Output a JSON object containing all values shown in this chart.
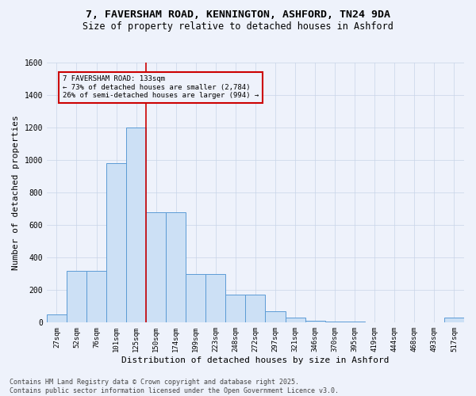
{
  "title_line1": "7, FAVERSHAM ROAD, KENNINGTON, ASHFORD, TN24 9DA",
  "title_line2": "Size of property relative to detached houses in Ashford",
  "xlabel": "Distribution of detached houses by size in Ashford",
  "ylabel": "Number of detached properties",
  "categories": [
    "27sqm",
    "52sqm",
    "76sqm",
    "101sqm",
    "125sqm",
    "150sqm",
    "174sqm",
    "199sqm",
    "223sqm",
    "248sqm",
    "272sqm",
    "297sqm",
    "321sqm",
    "346sqm",
    "370sqm",
    "395sqm",
    "419sqm",
    "444sqm",
    "468sqm",
    "493sqm",
    "517sqm"
  ],
  "values": [
    50,
    320,
    320,
    980,
    1200,
    680,
    680,
    300,
    300,
    170,
    170,
    70,
    30,
    10,
    5,
    5,
    2,
    2,
    2,
    2,
    30
  ],
  "bar_color": "#cce0f5",
  "bar_edge_color": "#5b9bd5",
  "vline_color": "#cc0000",
  "annotation_title": "7 FAVERSHAM ROAD: 133sqm",
  "annotation_line1": "← 73% of detached houses are smaller (2,784)",
  "annotation_line2": "26% of semi-detached houses are larger (994) →",
  "annotation_box_color": "#cc0000",
  "ylim": [
    0,
    1600
  ],
  "yticks": [
    0,
    200,
    400,
    600,
    800,
    1000,
    1200,
    1400,
    1600
  ],
  "footer_line1": "Contains HM Land Registry data © Crown copyright and database right 2025.",
  "footer_line2": "Contains public sector information licensed under the Open Government Licence v3.0.",
  "background_color": "#eef2fb",
  "grid_color": "#c8d4e8",
  "figsize": [
    6.0,
    5.0
  ],
  "dpi": 100
}
